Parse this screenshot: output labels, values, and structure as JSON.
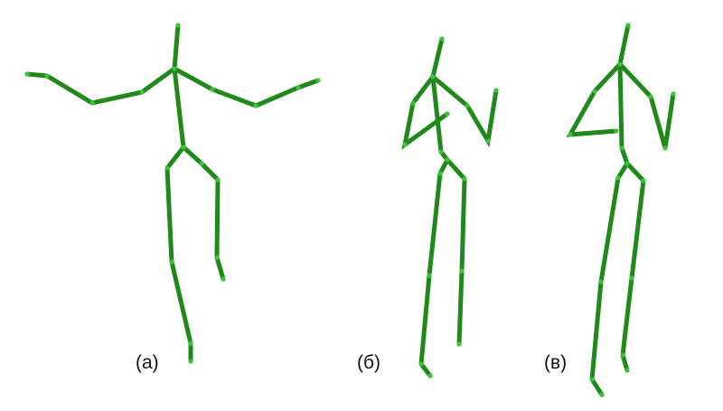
{
  "figures": [
    {
      "id": "a",
      "label": "(а)"
    },
    {
      "id": "b",
      "label": "(б)"
    },
    {
      "id": "c",
      "label": "(в)"
    }
  ],
  "colors": {
    "bone": "#1f8a1a",
    "joint": "#3fc23a",
    "text": "#111111"
  }
}
